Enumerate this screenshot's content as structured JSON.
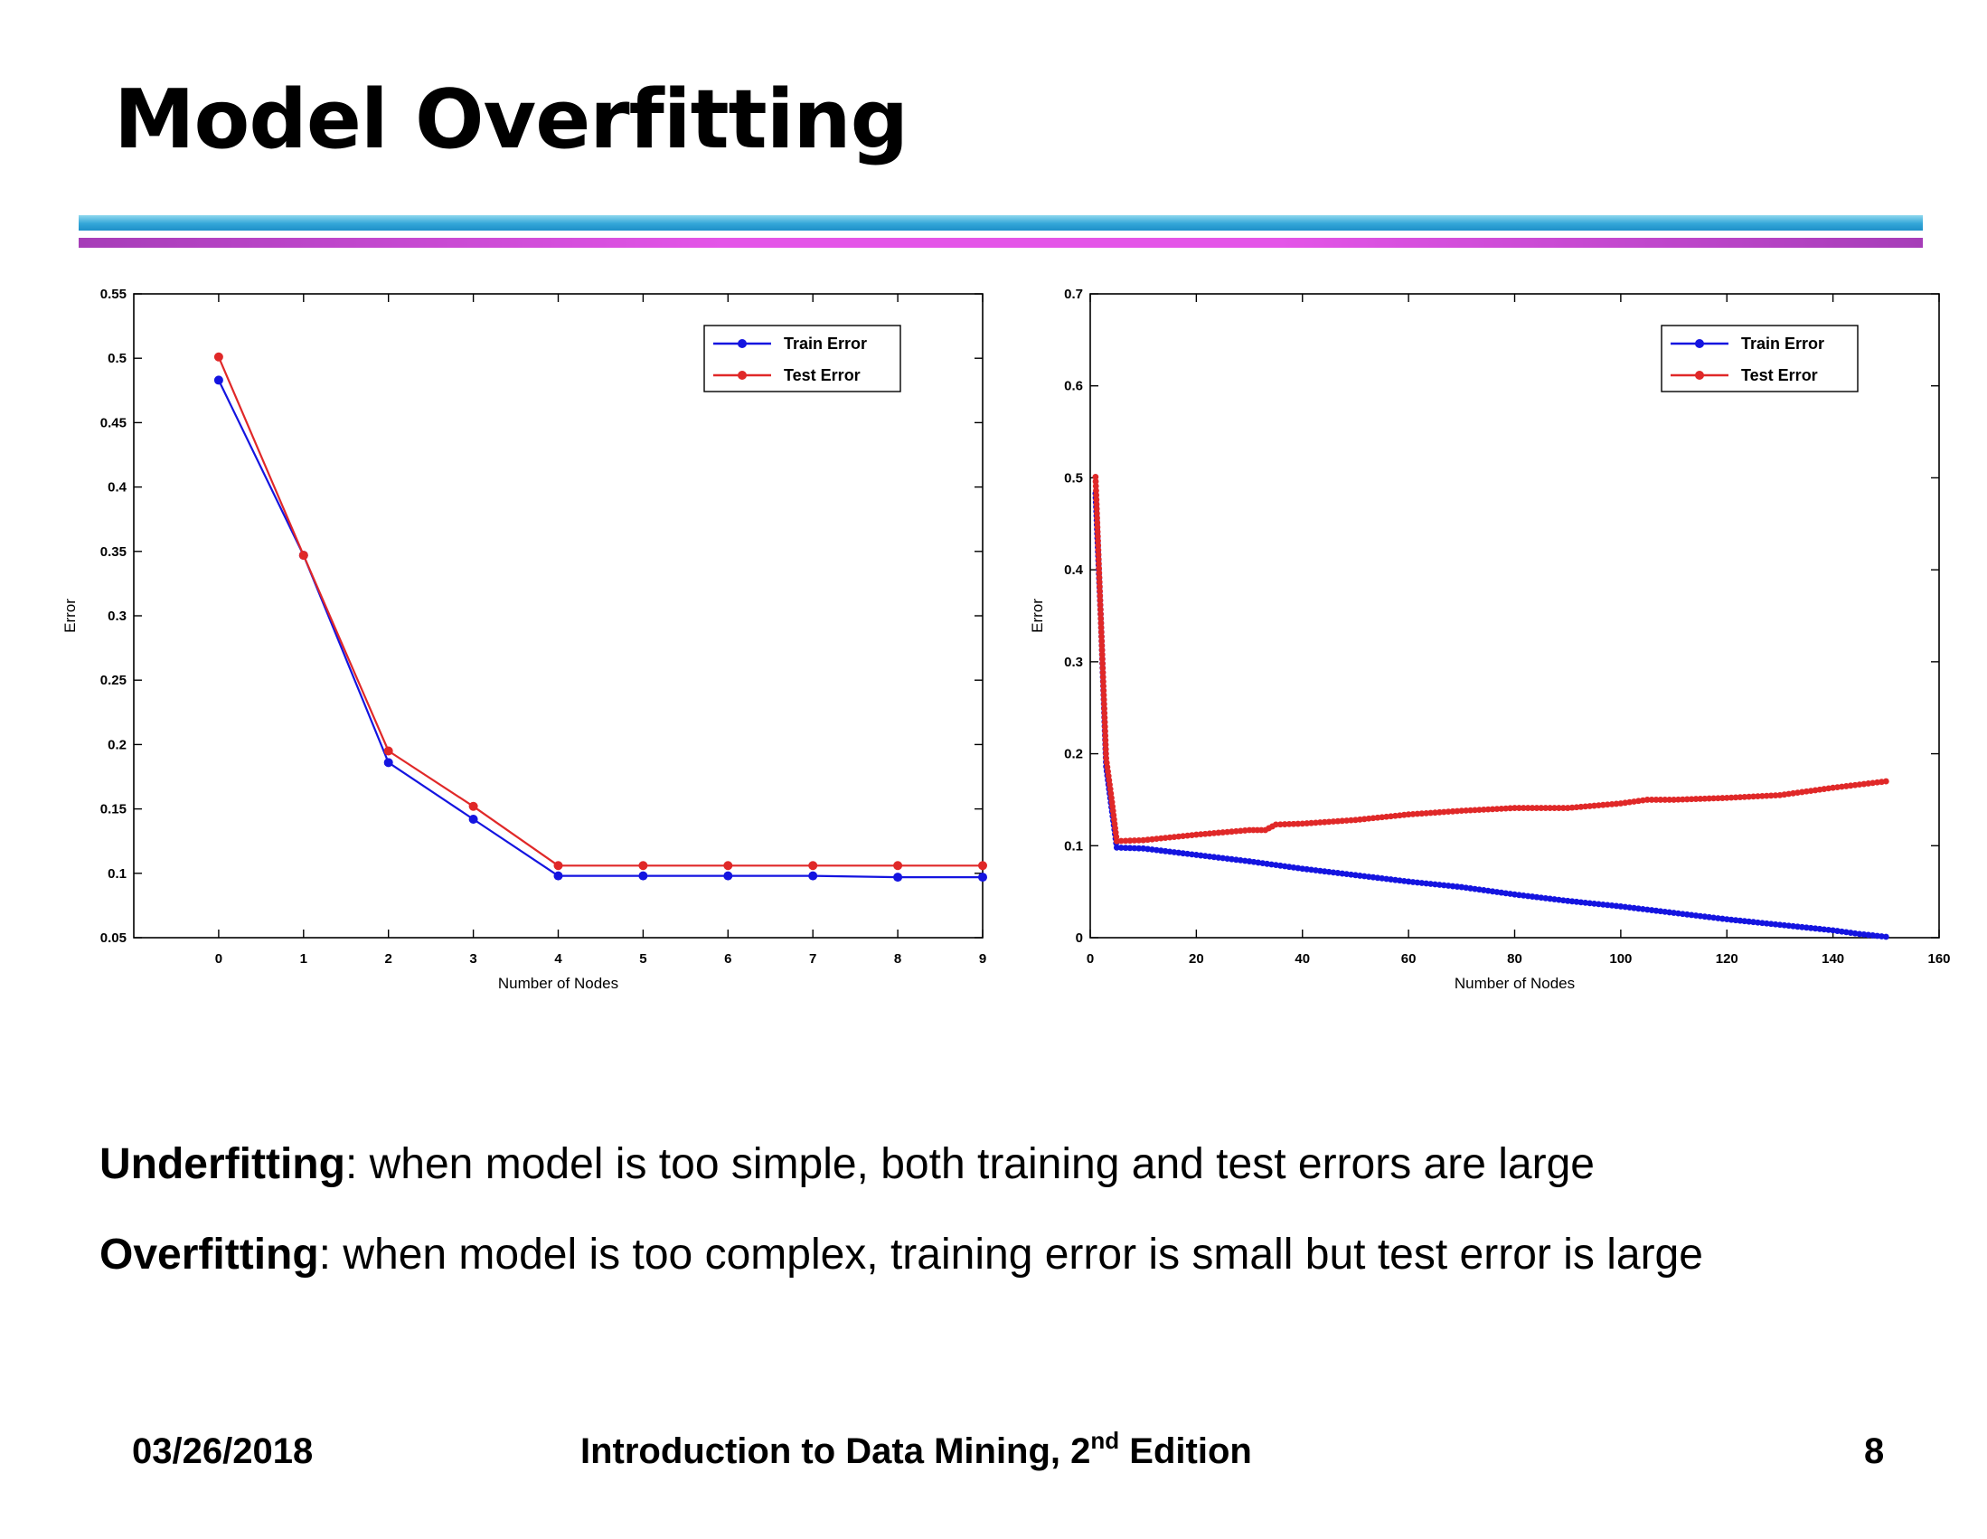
{
  "slide": {
    "title": "Model Overfitting",
    "underfitting": {
      "term": "Underfitting",
      "text": ": when model is too simple, both training and test errors are large"
    },
    "overfitting": {
      "term": "Overfitting",
      "text": ": when model is too complex, training error is small but test error is large"
    },
    "footer": {
      "date": "03/26/2018",
      "book_title": "Introduction to Data Mining, 2",
      "book_sup": "nd",
      "book_edition": " Edition",
      "page_number": "8"
    }
  },
  "colors": {
    "train": "#1414e0",
    "test": "#e02828"
  },
  "chart_data": [
    {
      "type": "line",
      "title": "",
      "xlabel": "Number of Nodes",
      "ylabel": "Error",
      "xlim": [
        -1,
        9
      ],
      "ylim": [
        0.05,
        0.55
      ],
      "xticks": [
        0,
        1,
        2,
        3,
        4,
        5,
        6,
        7,
        8,
        9
      ],
      "yticks": [
        0.05,
        0.1,
        0.15,
        0.2,
        0.25,
        0.3,
        0.35,
        0.4,
        0.45,
        0.5,
        0.55
      ],
      "legend_position": "top-right",
      "grid": false,
      "series": [
        {
          "name": "Train Error",
          "x": [
            0,
            1,
            2,
            3,
            4,
            5,
            6,
            7,
            8,
            9
          ],
          "values": [
            0.483,
            0.347,
            0.186,
            0.142,
            0.098,
            0.098,
            0.098,
            0.098,
            0.097,
            0.097
          ]
        },
        {
          "name": "Test Error",
          "x": [
            0,
            1,
            2,
            3,
            4,
            5,
            6,
            7,
            8,
            9
          ],
          "values": [
            0.501,
            0.347,
            0.195,
            0.152,
            0.106,
            0.106,
            0.106,
            0.106,
            0.106,
            0.106
          ]
        }
      ]
    },
    {
      "type": "line",
      "title": "",
      "xlabel": "Number of Nodes",
      "ylabel": "Error",
      "xlim": [
        0,
        160
      ],
      "ylim": [
        0,
        0.7
      ],
      "xticks": [
        0,
        20,
        40,
        60,
        80,
        100,
        120,
        140,
        160
      ],
      "yticks": [
        0,
        0.1,
        0.2,
        0.3,
        0.4,
        0.5,
        0.6,
        0.7
      ],
      "legend_position": "top-right",
      "grid": false,
      "series": [
        {
          "name": "Train Error",
          "x": [
            1,
            2,
            3,
            4,
            5,
            10,
            20,
            30,
            40,
            50,
            60,
            70,
            80,
            90,
            100,
            110,
            120,
            130,
            140,
            145,
            150
          ],
          "values": [
            0.483,
            0.347,
            0.186,
            0.142,
            0.098,
            0.097,
            0.09,
            0.083,
            0.075,
            0.068,
            0.061,
            0.055,
            0.047,
            0.04,
            0.034,
            0.027,
            0.02,
            0.014,
            0.008,
            0.004,
            0.001
          ]
        },
        {
          "name": "Test Error",
          "x": [
            1,
            2,
            3,
            4,
            5,
            10,
            20,
            30,
            33,
            35,
            40,
            50,
            60,
            70,
            80,
            90,
            100,
            105,
            110,
            120,
            130,
            140,
            150
          ],
          "values": [
            0.501,
            0.347,
            0.195,
            0.152,
            0.105,
            0.106,
            0.112,
            0.117,
            0.117,
            0.123,
            0.124,
            0.128,
            0.134,
            0.138,
            0.141,
            0.141,
            0.146,
            0.15,
            0.15,
            0.152,
            0.155,
            0.163,
            0.17
          ]
        }
      ]
    }
  ]
}
